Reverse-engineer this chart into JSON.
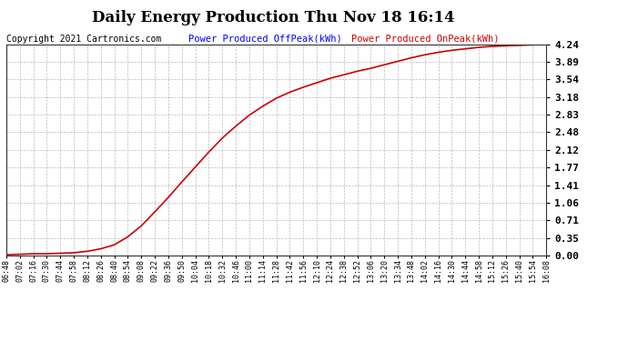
{
  "title": "Daily Energy Production Thu Nov 18 16:14",
  "copyright": "Copyright 2021 Cartronics.com",
  "legend_offpeak": "Power Produced OffPeak(kWh)",
  "legend_onpeak": "Power Produced OnPeak(kWh)",
  "offpeak_color": "#0000ff",
  "onpeak_color": "#cc0000",
  "bg_color": "#ffffff",
  "plot_bg_color": "#ffffff",
  "grid_color": "#aaaaaa",
  "ylim": [
    0.0,
    4.24
  ],
  "yticks": [
    0.0,
    0.35,
    0.71,
    1.06,
    1.41,
    1.77,
    2.12,
    2.48,
    2.83,
    3.18,
    3.54,
    3.89,
    4.24
  ],
  "x_labels": [
    "06:48",
    "07:02",
    "07:16",
    "07:30",
    "07:44",
    "07:58",
    "08:12",
    "08:26",
    "08:40",
    "08:54",
    "09:08",
    "09:22",
    "09:36",
    "09:50",
    "10:04",
    "10:18",
    "10:32",
    "10:46",
    "11:00",
    "11:14",
    "11:28",
    "11:42",
    "11:56",
    "12:10",
    "12:24",
    "12:38",
    "12:52",
    "13:06",
    "13:20",
    "13:34",
    "13:48",
    "14:02",
    "14:16",
    "14:30",
    "14:44",
    "14:58",
    "15:12",
    "15:26",
    "15:40",
    "15:54",
    "16:08"
  ],
  "curve_y": [
    0.02,
    0.03,
    0.04,
    0.04,
    0.05,
    0.06,
    0.09,
    0.14,
    0.22,
    0.38,
    0.6,
    0.88,
    1.17,
    1.48,
    1.78,
    2.08,
    2.36,
    2.6,
    2.82,
    3.0,
    3.16,
    3.28,
    3.38,
    3.47,
    3.56,
    3.63,
    3.7,
    3.76,
    3.83,
    3.9,
    3.97,
    4.03,
    4.08,
    4.12,
    4.15,
    4.18,
    4.2,
    4.21,
    4.22,
    4.23,
    4.24
  ],
  "title_fontsize": 12,
  "copyright_fontsize": 7,
  "legend_fontsize": 7.5,
  "ytick_fontsize": 8,
  "xtick_fontsize": 6
}
